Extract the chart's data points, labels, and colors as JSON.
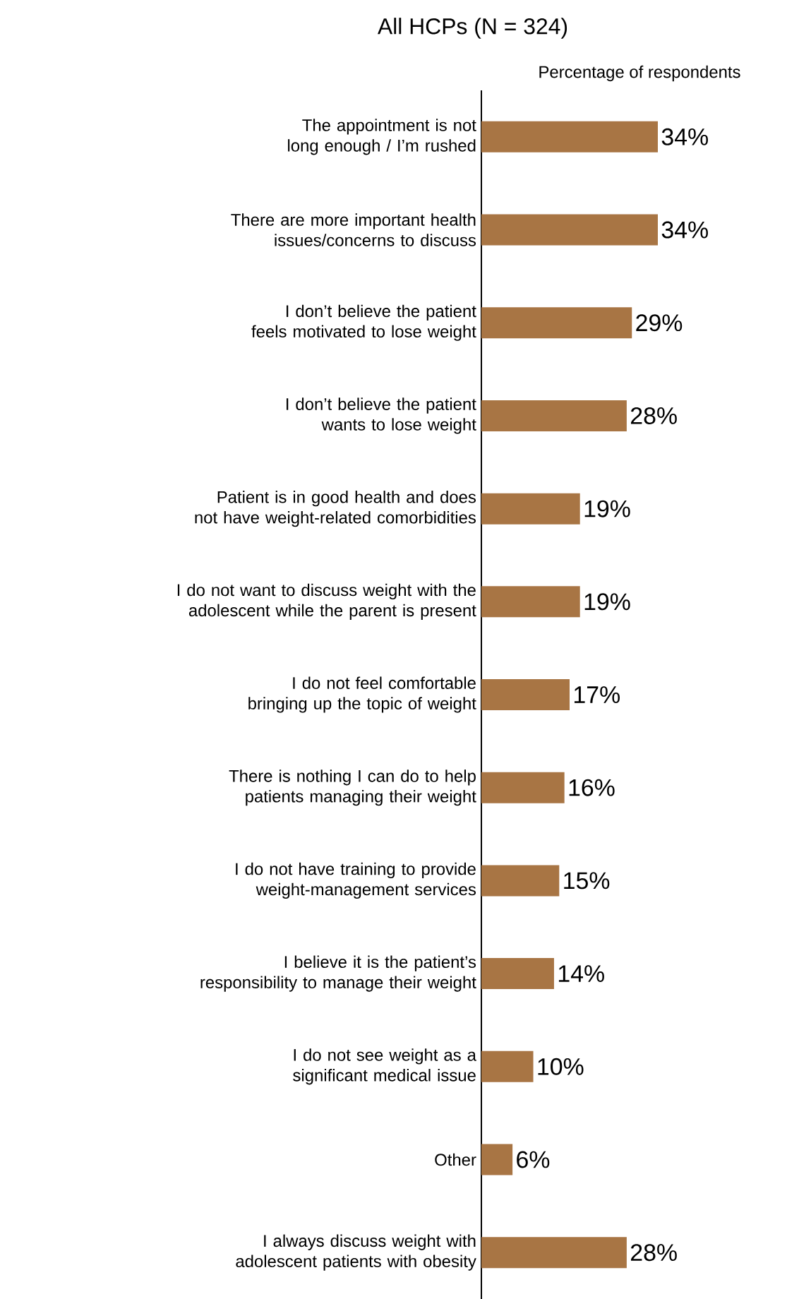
{
  "chart_data": {
    "type": "bar",
    "orientation": "horizontal",
    "title": "All HCPs (N = 324)",
    "xlabel": "Percentage of respondents",
    "categories": [
      "The appointment is not long enough / I’m rushed",
      "There are more important health issues/concerns to discuss",
      "I don’t believe the patient feels motivated to lose weight",
      "I don’t believe the patient wants to lose weight",
      "Patient is in good health and does not have weight-related comorbidities",
      "I do not want to discuss weight with the adolescent while the parent is present",
      "I do not feel comfortable bringing up the topic of weight",
      "There is nothing I can do to help patients managing their weight",
      "I do not have training to provide weight-management services",
      "I believe it is the patient’s responsibility to manage their weight",
      "I do not see weight as a significant medical issue",
      "Other",
      "I always discuss weight with adolescent patients with obesity"
    ],
    "values": [
      34,
      34,
      29,
      28,
      19,
      19,
      17,
      16,
      15,
      14,
      10,
      6,
      28
    ],
    "value_labels": [
      "34%",
      "34%",
      "29%",
      "28%",
      "19%",
      "19%",
      "17%",
      "16%",
      "15%",
      "14%",
      "10%",
      "6%",
      "28%"
    ],
    "color": "#a87544"
  }
}
